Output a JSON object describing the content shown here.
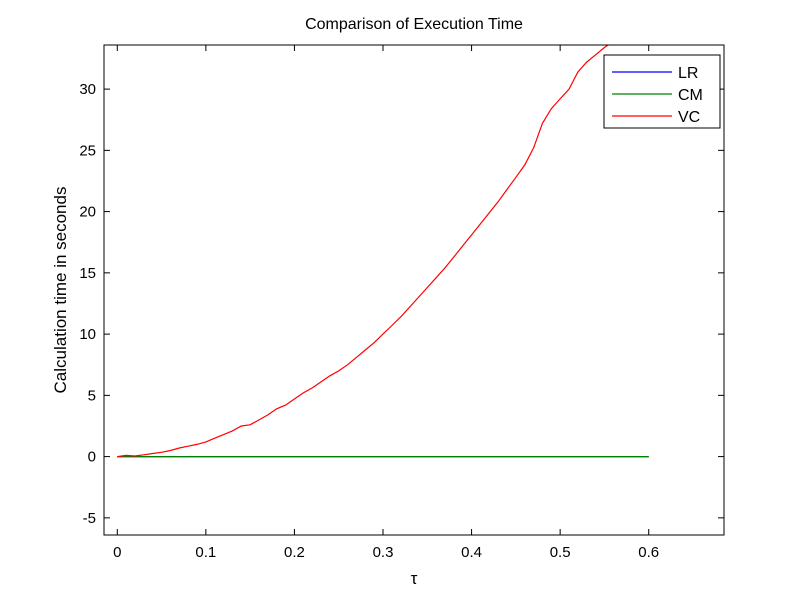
{
  "chart_data": {
    "type": "line",
    "title": "Comparison of Execution Time",
    "xlabel": "τ",
    "ylabel": "Calculation time in seconds",
    "xlim": [
      -0.015,
      0.685
    ],
    "ylim": [
      -6.4,
      33.6
    ],
    "xticks": [
      0,
      0.1,
      0.2,
      0.3,
      0.4,
      0.5,
      0.6
    ],
    "yticks": [
      -5,
      0,
      5,
      10,
      15,
      20,
      25,
      30
    ],
    "grid": false,
    "legend_position": "top-right",
    "series": [
      {
        "name": "LR",
        "color": "#0000ff",
        "x": [
          0,
          0.6
        ],
        "y": [
          0,
          0
        ]
      },
      {
        "name": "CM",
        "color": "#008000",
        "x": [
          0,
          0.6
        ],
        "y": [
          0,
          0
        ]
      },
      {
        "name": "VC",
        "color": "#ff0000",
        "x": [
          0,
          0.01,
          0.02,
          0.03,
          0.04,
          0.05,
          0.06,
          0.07,
          0.08,
          0.09,
          0.1,
          0.11,
          0.12,
          0.13,
          0.14,
          0.15,
          0.16,
          0.17,
          0.18,
          0.19,
          0.2,
          0.21,
          0.22,
          0.23,
          0.24,
          0.25,
          0.26,
          0.27,
          0.28,
          0.29,
          0.3,
          0.31,
          0.32,
          0.33,
          0.34,
          0.35,
          0.36,
          0.37,
          0.38,
          0.39,
          0.4,
          0.41,
          0.42,
          0.43,
          0.44,
          0.45,
          0.46,
          0.47,
          0.48,
          0.49,
          0.5,
          0.51,
          0.52,
          0.53,
          0.54,
          0.55,
          0.56
        ],
        "y": [
          0,
          0.1,
          0.05,
          0.15,
          0.25,
          0.35,
          0.5,
          0.7,
          0.85,
          1.0,
          1.2,
          1.5,
          1.8,
          2.1,
          2.5,
          2.6,
          3.0,
          3.4,
          3.9,
          4.2,
          4.7,
          5.2,
          5.6,
          6.1,
          6.6,
          7.0,
          7.5,
          8.1,
          8.7,
          9.3,
          10.0,
          10.7,
          11.4,
          12.2,
          13.0,
          13.8,
          14.6,
          15.4,
          16.3,
          17.2,
          18.1,
          19.0,
          19.9,
          20.8,
          21.8,
          22.8,
          23.8,
          25.2,
          27.2,
          28.4,
          29.2,
          30.0,
          31.4,
          32.2,
          32.8,
          33.4,
          33.9
        ]
      }
    ]
  }
}
